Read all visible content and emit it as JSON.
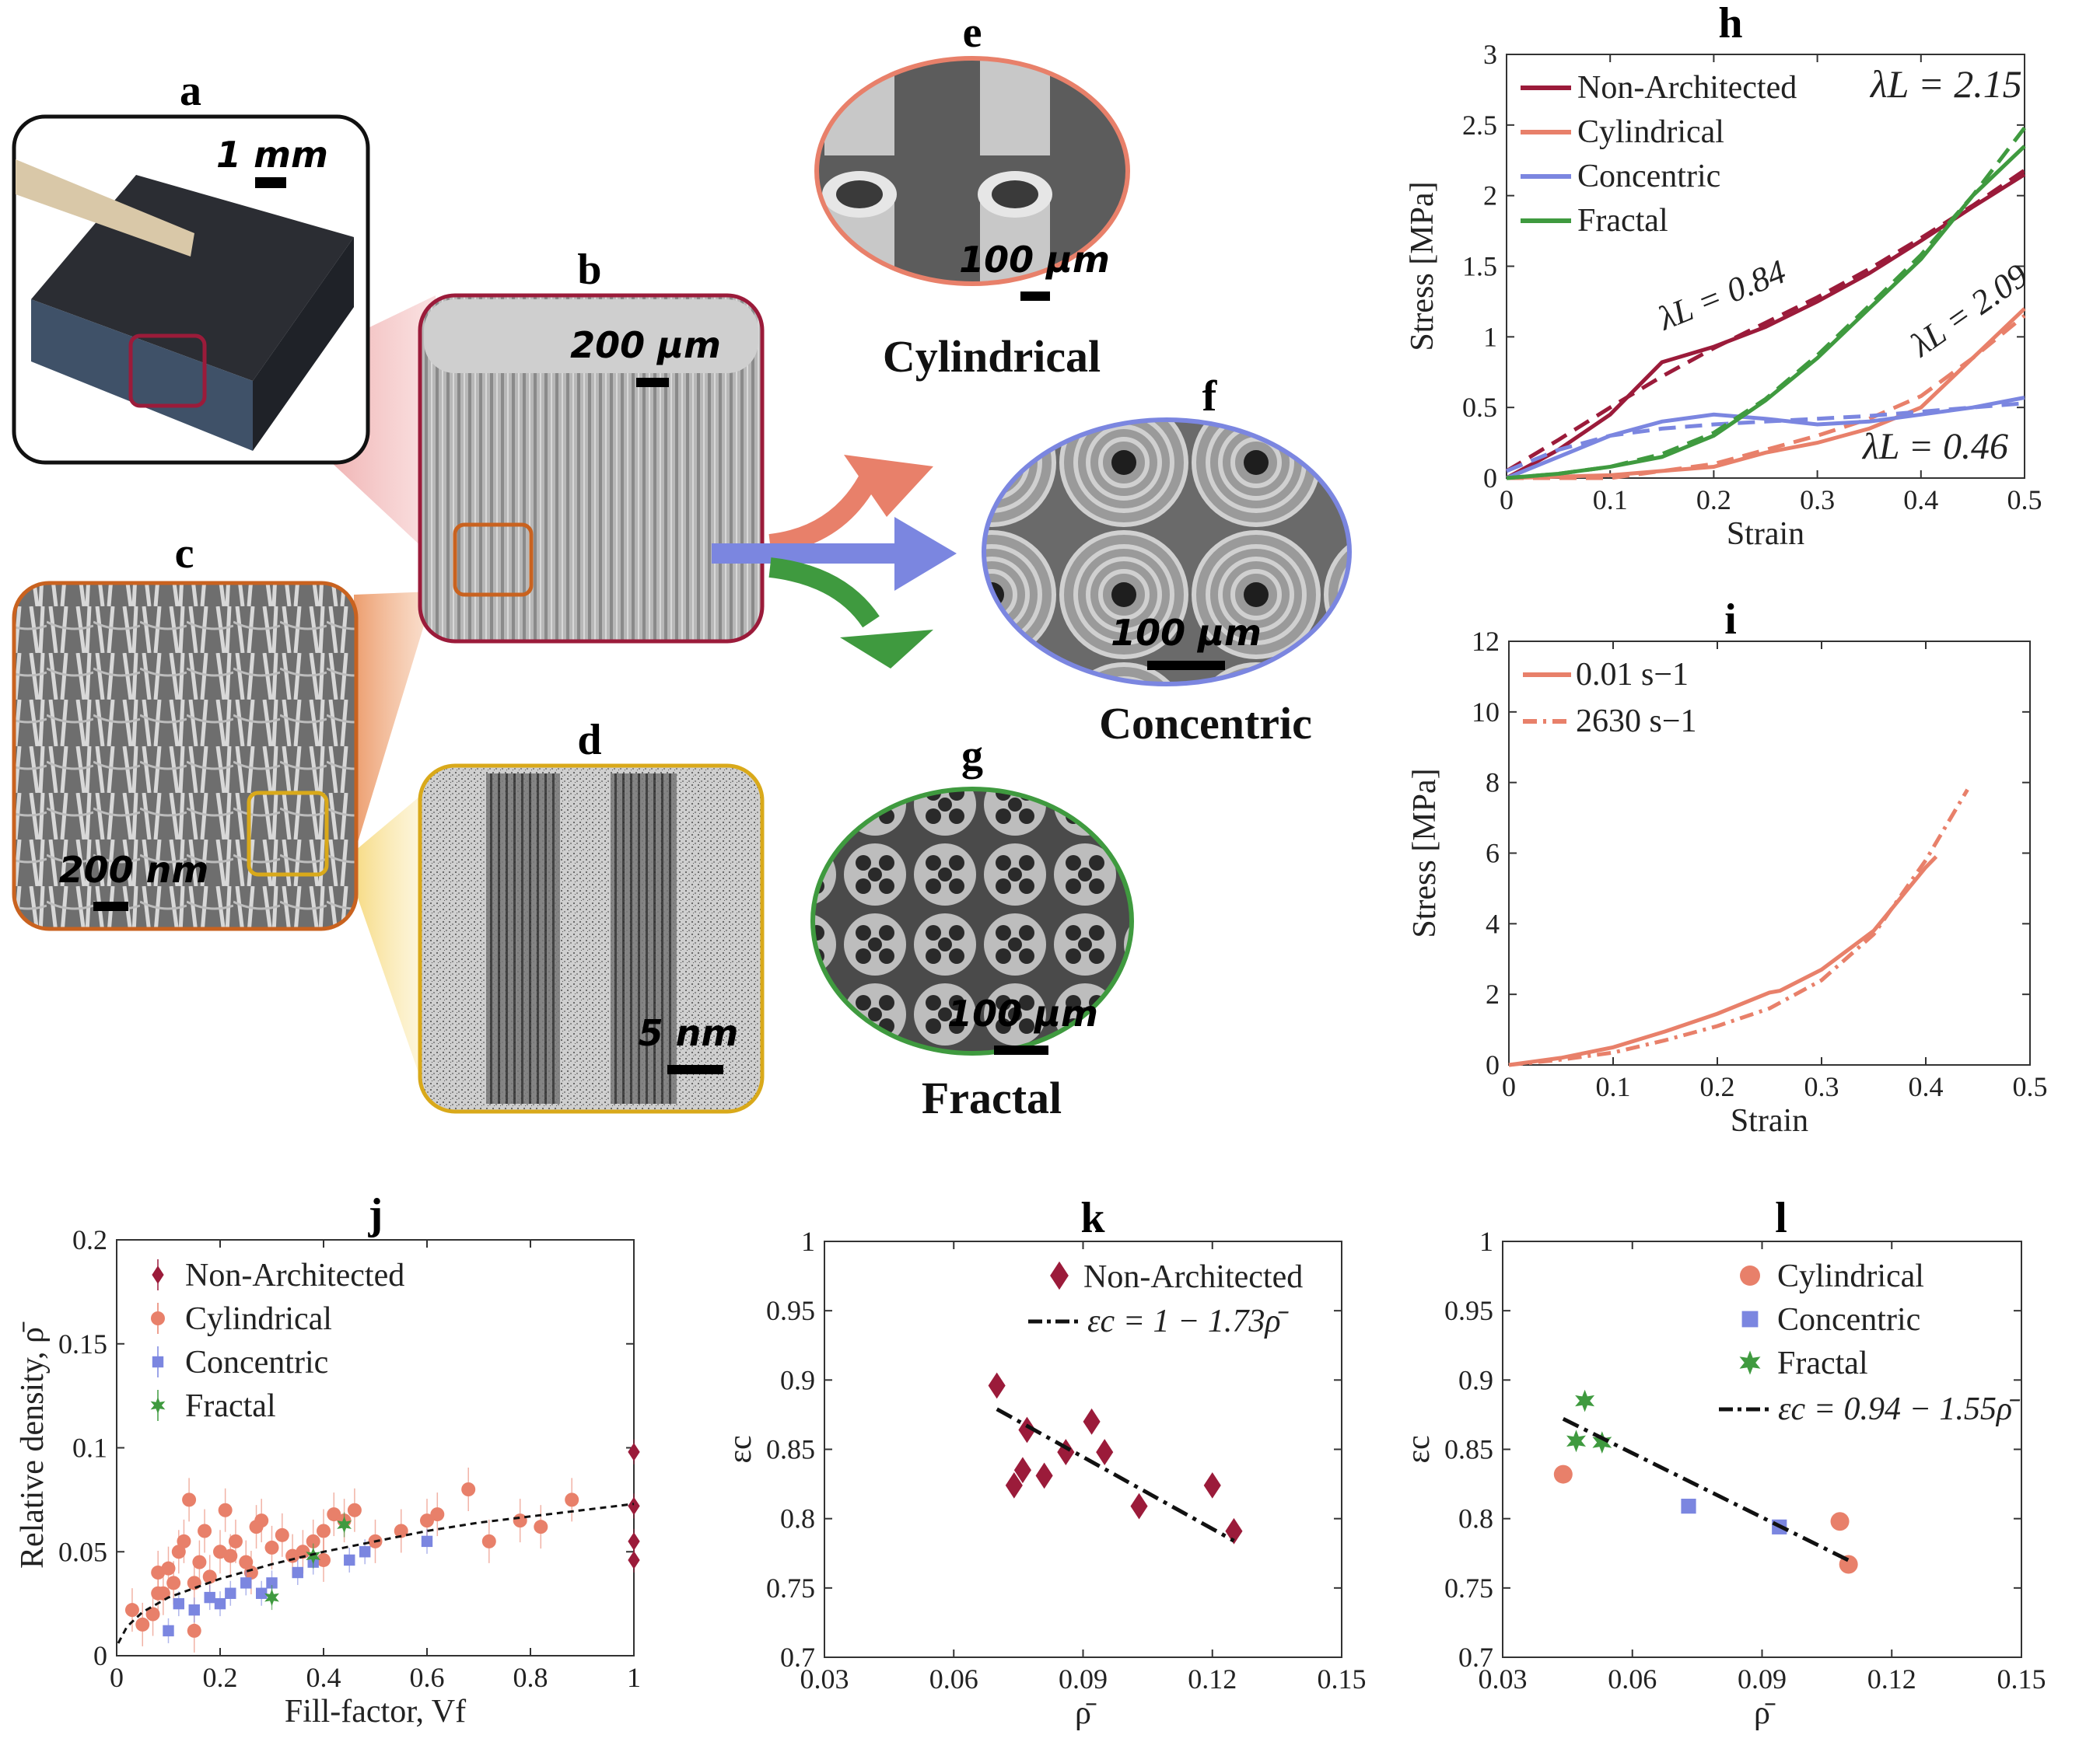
{
  "colors": {
    "non": "#9b1b3a",
    "cyl": "#e8806a",
    "con": "#7b86e0",
    "fra": "#3f9a3f",
    "yellow": "#d9a91a",
    "orangeframe": "#c9621f"
  },
  "panels": {
    "a": {
      "label": "a",
      "scale": "1 mm"
    },
    "b": {
      "label": "b",
      "scale": "200 μm"
    },
    "c": {
      "label": "c",
      "scale": "200 nm"
    },
    "d": {
      "label": "d",
      "scale": "5 nm"
    },
    "e": {
      "label": "e",
      "scale": "100 μm",
      "caption": "Cylindrical"
    },
    "f": {
      "label": "f",
      "scale": "100 μm",
      "caption": "Concentric"
    },
    "g": {
      "label": "g",
      "scale": "100 μm",
      "caption": "Fractal"
    },
    "h": {
      "label": "h"
    },
    "i": {
      "label": "i"
    },
    "j": {
      "label": "j"
    },
    "k": {
      "label": "k"
    },
    "l": {
      "label": "l"
    }
  },
  "chart_data": [
    {
      "id": "h",
      "type": "line",
      "xlabel": "Strain",
      "ylabel": "Stress [MPa]",
      "xlim": [
        0,
        0.5
      ],
      "ylim": [
        0,
        3
      ],
      "xticks": [
        "0",
        "0.1",
        "0.2",
        "0.3",
        "0.4",
        "0.5"
      ],
      "yticks": [
        "0",
        "0.5",
        "1",
        "1.5",
        "2",
        "2.5",
        "3"
      ],
      "series": [
        {
          "name": "Non-Architected",
          "color": "non",
          "x": [
            0,
            0.05,
            0.1,
            0.15,
            0.2,
            0.25,
            0.3,
            0.35,
            0.4,
            0.45,
            0.5
          ],
          "y": [
            0,
            0.2,
            0.45,
            0.82,
            0.93,
            1.07,
            1.25,
            1.45,
            1.68,
            1.92,
            2.15
          ],
          "fit_y": [
            0.05,
            0.27,
            0.5,
            0.72,
            0.92,
            1.1,
            1.28,
            1.48,
            1.7,
            1.93,
            2.18
          ]
        },
        {
          "name": "Cylindrical",
          "color": "cyl",
          "x": [
            0,
            0.1,
            0.15,
            0.2,
            0.25,
            0.3,
            0.35,
            0.4,
            0.45,
            0.5
          ],
          "y": [
            0,
            0.02,
            0.05,
            0.08,
            0.18,
            0.25,
            0.35,
            0.5,
            0.85,
            1.2
          ],
          "fit_y": [
            0,
            0,
            0.05,
            0.1,
            0.2,
            0.3,
            0.42,
            0.58,
            0.85,
            1.15
          ]
        },
        {
          "name": "Concentric",
          "color": "con",
          "x": [
            0,
            0.05,
            0.1,
            0.15,
            0.2,
            0.25,
            0.3,
            0.35,
            0.4,
            0.45,
            0.5
          ],
          "y": [
            0,
            0.15,
            0.3,
            0.4,
            0.45,
            0.42,
            0.38,
            0.4,
            0.45,
            0.5,
            0.57
          ],
          "fit_y": [
            0.05,
            0.2,
            0.3,
            0.35,
            0.38,
            0.4,
            0.42,
            0.44,
            0.47,
            0.5,
            0.53
          ]
        },
        {
          "name": "Fractal",
          "color": "fra",
          "x": [
            0,
            0.05,
            0.1,
            0.15,
            0.2,
            0.25,
            0.3,
            0.35,
            0.4,
            0.45,
            0.5
          ],
          "y": [
            0,
            0.03,
            0.08,
            0.15,
            0.3,
            0.55,
            0.85,
            1.2,
            1.55,
            2.0,
            2.35
          ],
          "fit_y": [
            0,
            0.03,
            0.08,
            0.17,
            0.32,
            0.56,
            0.87,
            1.22,
            1.58,
            2.0,
            2.48
          ]
        }
      ],
      "annotations": [
        {
          "text": "λL = 0.84",
          "color": "non"
        },
        {
          "text": "λL = 2.09",
          "color": "cyl"
        },
        {
          "text": "λL = 0.46",
          "color": "con"
        },
        {
          "text": "λL = 2.15",
          "color": "fra"
        }
      ]
    },
    {
      "id": "i",
      "type": "line",
      "xlabel": "Strain",
      "ylabel": "Stress [MPa]",
      "xlim": [
        0,
        0.5
      ],
      "ylim": [
        0,
        12
      ],
      "xticks": [
        "0",
        "0.1",
        "0.2",
        "0.3",
        "0.4",
        "0.5"
      ],
      "yticks": [
        "0",
        "2",
        "4",
        "6",
        "8",
        "10",
        "12"
      ],
      "series": [
        {
          "name": "0.01 s−1",
          "style": "solid",
          "x": [
            0,
            0.05,
            0.1,
            0.15,
            0.2,
            0.25,
            0.26,
            0.3,
            0.35,
            0.4,
            0.41
          ],
          "y": [
            0,
            0.2,
            0.5,
            0.95,
            1.45,
            2.05,
            2.1,
            2.7,
            3.8,
            5.6,
            5.9
          ]
        },
        {
          "name": "2630 s−1",
          "style": "dashed",
          "x": [
            0,
            0.05,
            0.1,
            0.15,
            0.2,
            0.25,
            0.3,
            0.35,
            0.4,
            0.44
          ],
          "y": [
            0,
            0.15,
            0.35,
            0.7,
            1.1,
            1.6,
            2.4,
            3.7,
            5.8,
            7.8
          ]
        }
      ]
    },
    {
      "id": "j",
      "type": "scatter",
      "xlabel": "Fill-factor, Vf",
      "ylabel": "Relative density, ρ̄",
      "xlim": [
        0,
        1
      ],
      "ylim": [
        0,
        0.2
      ],
      "xticks": [
        "0",
        "0.2",
        "0.4",
        "0.6",
        "0.8",
        "1"
      ],
      "yticks": [
        "0",
        "0.05",
        "0.1",
        "0.15",
        "0.2"
      ],
      "series": [
        {
          "name": "Non-Architected",
          "marker": "diamond",
          "color": "non",
          "x": [
            1,
            1,
            1,
            1
          ],
          "y": [
            0.098,
            0.072,
            0.055,
            0.046
          ]
        },
        {
          "name": "Cylindrical",
          "marker": "circle",
          "color": "cyl",
          "x": [
            0.03,
            0.05,
            0.07,
            0.08,
            0.09,
            0.1,
            0.11,
            0.12,
            0.13,
            0.14,
            0.15,
            0.16,
            0.17,
            0.18,
            0.2,
            0.21,
            0.22,
            0.23,
            0.25,
            0.27,
            0.28,
            0.3,
            0.32,
            0.34,
            0.36,
            0.38,
            0.4,
            0.42,
            0.44,
            0.46,
            0.5,
            0.55,
            0.6,
            0.62,
            0.68,
            0.72,
            0.78,
            0.82,
            0.88,
            0.15,
            0.08,
            0.26,
            0.4
          ],
          "y": [
            0.022,
            0.015,
            0.02,
            0.04,
            0.03,
            0.042,
            0.035,
            0.05,
            0.055,
            0.075,
            0.012,
            0.045,
            0.06,
            0.038,
            0.05,
            0.07,
            0.048,
            0.055,
            0.045,
            0.062,
            0.065,
            0.052,
            0.058,
            0.048,
            0.05,
            0.055,
            0.06,
            0.068,
            0.065,
            0.07,
            0.055,
            0.06,
            0.065,
            0.068,
            0.08,
            0.055,
            0.065,
            0.062,
            0.075,
            0.035,
            0.03,
            0.04,
            0.046
          ]
        },
        {
          "name": "Concentric",
          "marker": "square",
          "color": "con",
          "x": [
            0.1,
            0.12,
            0.15,
            0.18,
            0.2,
            0.22,
            0.25,
            0.28,
            0.3,
            0.35,
            0.38,
            0.45,
            0.48,
            0.6
          ],
          "y": [
            0.012,
            0.025,
            0.022,
            0.028,
            0.025,
            0.03,
            0.035,
            0.03,
            0.035,
            0.04,
            0.045,
            0.046,
            0.05,
            0.055
          ]
        },
        {
          "name": "Fractal",
          "marker": "star",
          "color": "fra",
          "x": [
            0.3,
            0.38,
            0.44
          ],
          "y": [
            0.028,
            0.048,
            0.063
          ]
        }
      ],
      "fit": {
        "name": "",
        "x": [
          0.003,
          0.02,
          0.05,
          0.1,
          0.2,
          0.3,
          0.4,
          0.5,
          0.6,
          0.7,
          0.8,
          0.9,
          1.0
        ],
        "y": [
          0.006,
          0.014,
          0.021,
          0.028,
          0.037,
          0.044,
          0.05,
          0.055,
          0.06,
          0.064,
          0.067,
          0.07,
          0.073
        ]
      }
    },
    {
      "id": "k",
      "type": "scatter",
      "xlabel": "ρ̄",
      "ylabel": "εc",
      "xlim": [
        0.03,
        0.15
      ],
      "ylim": [
        0.7,
        1
      ],
      "xticks": [
        "0.03",
        "0.06",
        "0.09",
        "0.12",
        "0.15"
      ],
      "yticks": [
        "0.7",
        "0.75",
        "0.8",
        "0.85",
        "0.9",
        "0.95",
        "1"
      ],
      "series": [
        {
          "name": "Non-Architected",
          "marker": "diamond",
          "color": "non",
          "x": [
            0.07,
            0.074,
            0.076,
            0.077,
            0.081,
            0.086,
            0.092,
            0.095,
            0.103,
            0.12,
            0.125
          ],
          "y": [
            0.896,
            0.824,
            0.835,
            0.864,
            0.831,
            0.848,
            0.87,
            0.848,
            0.809,
            0.824,
            0.791
          ]
        }
      ],
      "fit": {
        "name": "εc = 1 − 1.73ρ̄",
        "x": [
          0.07,
          0.125
        ],
        "y": [
          0.879,
          0.784
        ]
      }
    },
    {
      "id": "l",
      "type": "scatter",
      "xlabel": "ρ̄",
      "ylabel": "εc",
      "xlim": [
        0.03,
        0.15
      ],
      "ylim": [
        0.7,
        1
      ],
      "xticks": [
        "0.03",
        "0.06",
        "0.09",
        "0.12",
        "0.15"
      ],
      "yticks": [
        "0.7",
        "0.75",
        "0.8",
        "0.85",
        "0.9",
        "0.95",
        "1"
      ],
      "series": [
        {
          "name": "Cylindrical",
          "marker": "circle",
          "color": "cyl",
          "x": [
            0.044,
            0.108,
            0.11
          ],
          "y": [
            0.832,
            0.798,
            0.767
          ]
        },
        {
          "name": "Concentric",
          "marker": "square",
          "color": "con",
          "x": [
            0.073,
            0.094
          ],
          "y": [
            0.809,
            0.794
          ]
        },
        {
          "name": "Fractal",
          "marker": "star",
          "color": "fra",
          "x": [
            0.047,
            0.049,
            0.053
          ],
          "y": [
            0.856,
            0.885,
            0.855
          ]
        }
      ],
      "fit": {
        "name": "εc = 0.94 − 1.55ρ̄",
        "x": [
          0.044,
          0.11
        ],
        "y": [
          0.872,
          0.77
        ]
      }
    }
  ]
}
